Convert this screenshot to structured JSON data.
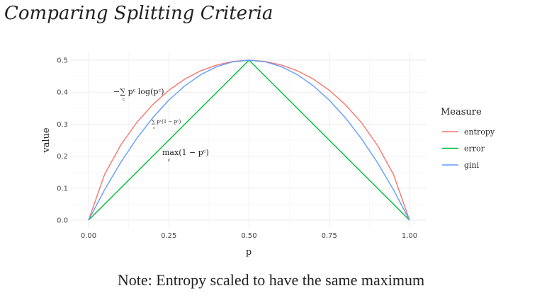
{
  "title": "Comparing Splitting Criteria",
  "note": "Note: Entropy scaled to have the same maximum",
  "annotations": {
    "entropy_formula": "−∑ pᶜ log(pᶜ)",
    "gini_formula": "∑ pᶜ(1 − pᶜ)",
    "error_formula": "max(1 − pᶜ)",
    "sub_c": "c"
  },
  "chart_data": {
    "type": "line",
    "xlabel": "p",
    "ylabel": "value",
    "xlim": [
      0,
      1
    ],
    "ylim": [
      0,
      0.5
    ],
    "x_ticks": [
      "0.00",
      "0.25",
      "0.50",
      "0.75",
      "1.00"
    ],
    "y_ticks": [
      "0.0",
      "0.1",
      "0.2",
      "0.3",
      "0.4",
      "0.5"
    ],
    "grid": true,
    "legend": {
      "title": "Measure",
      "position": "right"
    },
    "series": [
      {
        "name": "entropy",
        "color": "#F8766D",
        "formula": "0.5 * (-(p log2 p + (1-p) log2 (1-p)))",
        "x": [
          0,
          0.05,
          0.1,
          0.15,
          0.2,
          0.25,
          0.3,
          0.35,
          0.4,
          0.45,
          0.5,
          0.55,
          0.6,
          0.65,
          0.7,
          0.75,
          0.8,
          0.85,
          0.9,
          0.95,
          1.0
        ],
        "y": [
          0,
          0.143,
          0.234,
          0.305,
          0.361,
          0.406,
          0.441,
          0.467,
          0.485,
          0.496,
          0.5,
          0.496,
          0.485,
          0.467,
          0.441,
          0.406,
          0.361,
          0.305,
          0.234,
          0.143,
          0
        ]
      },
      {
        "name": "error",
        "color": "#00BA38",
        "formula": "min(p, 1-p)",
        "x": [
          0,
          0.5,
          1.0
        ],
        "y": [
          0,
          0.5,
          0
        ]
      },
      {
        "name": "gini",
        "color": "#619CFF",
        "formula": "2 p (1-p)",
        "x": [
          0,
          0.05,
          0.1,
          0.15,
          0.2,
          0.25,
          0.3,
          0.35,
          0.4,
          0.45,
          0.5,
          0.55,
          0.6,
          0.65,
          0.7,
          0.75,
          0.8,
          0.85,
          0.9,
          0.95,
          1.0
        ],
        "y": [
          0,
          0.095,
          0.18,
          0.255,
          0.32,
          0.375,
          0.42,
          0.455,
          0.48,
          0.495,
          0.5,
          0.495,
          0.48,
          0.455,
          0.42,
          0.375,
          0.32,
          0.255,
          0.18,
          0.095,
          0
        ]
      }
    ]
  }
}
